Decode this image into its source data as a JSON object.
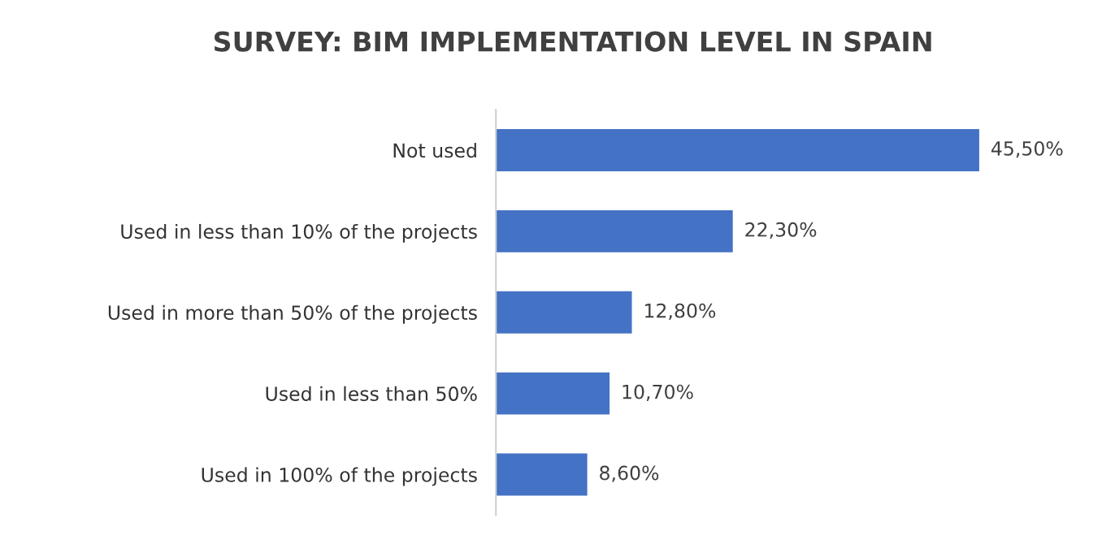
{
  "chart_data": {
    "type": "bar",
    "orientation": "horizontal",
    "title": "SURVEY: BIM IMPLEMENTATION LEVEL IN SPAIN",
    "categories": [
      "Not used",
      "Used in less than 10% of the projects",
      "Used in more than 50% of the projects",
      "Used in less than 50%",
      "Used in 100% of the projects"
    ],
    "values": [
      45.5,
      22.3,
      12.8,
      10.7,
      8.6
    ],
    "value_labels": [
      "45,50%",
      "22,30%",
      "12,80%",
      "10,70%",
      "8,60%"
    ],
    "color": "#4472c4"
  }
}
